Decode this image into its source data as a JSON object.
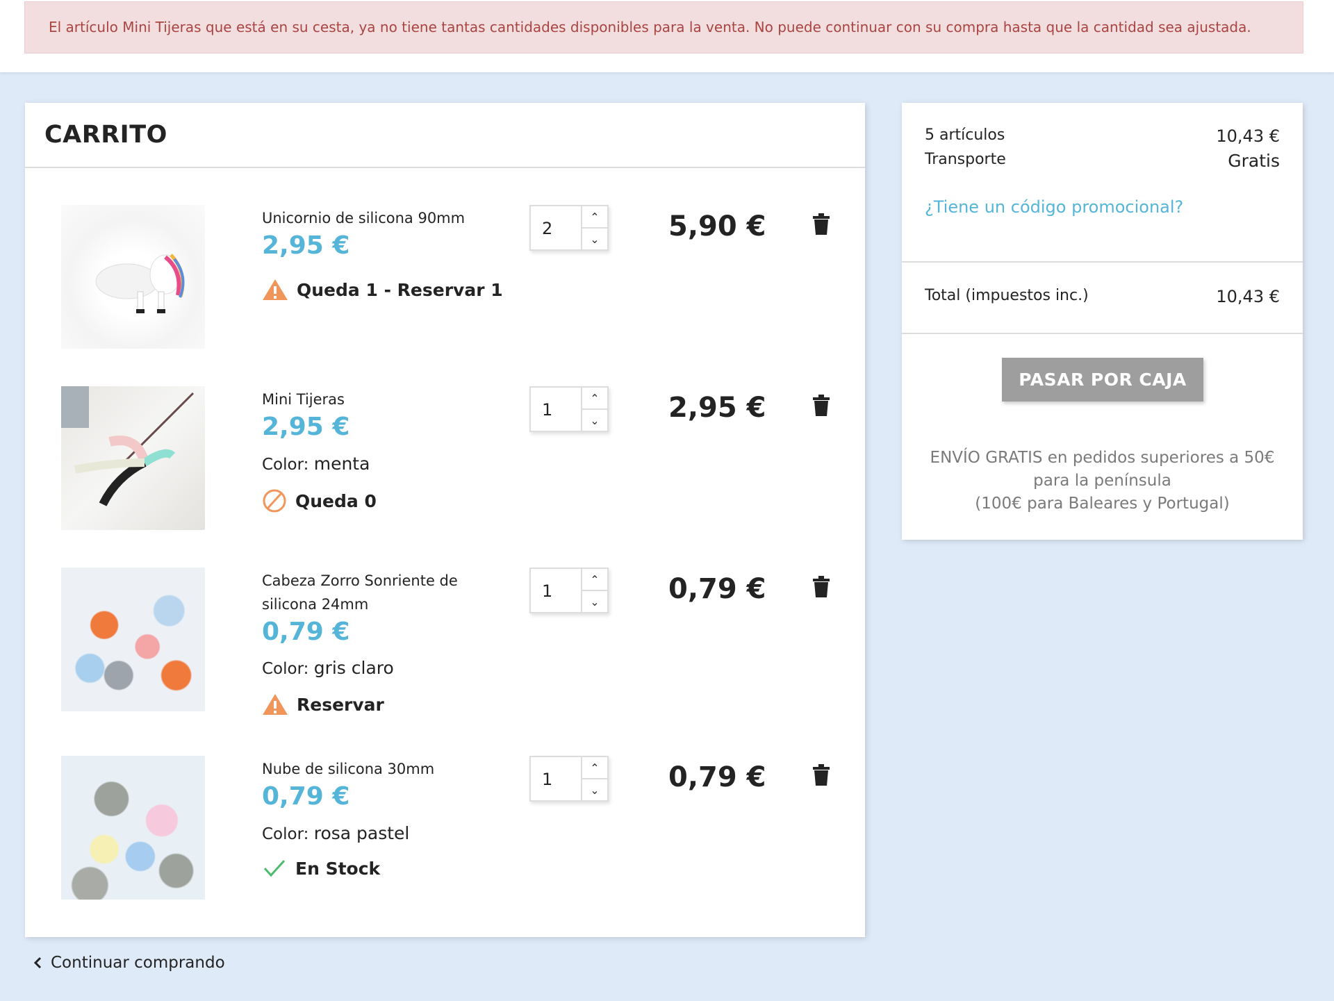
{
  "alert": {
    "message": "El artículo Mini Tijeras que está en su cesta, ya no tiene tantas cantidades disponibles para la venta. No puede continuar con su compra hasta que la cantidad sea ajustada."
  },
  "cart": {
    "title": "CARRITO",
    "items": [
      {
        "name": "Unicornio de silicona 90mm",
        "unit_price": "2,95 €",
        "color_label": "",
        "color": "",
        "stock": "Queda 1 - Reservar 1",
        "stock_icon": "warning-icon",
        "qty": "2",
        "total": "5,90 €"
      },
      {
        "name": "Mini Tijeras",
        "unit_price": "2,95 €",
        "color_label": "Color:",
        "color": "menta",
        "stock": "Queda 0",
        "stock_icon": "prohibited-icon",
        "qty": "1",
        "total": "2,95 €"
      },
      {
        "name": "Cabeza Zorro Sonriente de silicona 24mm",
        "unit_price": "0,79 €",
        "color_label": "Color:",
        "color": "gris claro",
        "stock": "Reservar",
        "stock_icon": "warning-icon",
        "qty": "1",
        "total": "0,79 €"
      },
      {
        "name": "Nube de silicona 30mm",
        "unit_price": "0,79 €",
        "color_label": "Color:",
        "color": "rosa pastel",
        "stock": "En Stock",
        "stock_icon": "check-icon",
        "qty": "1",
        "total": "0,79 €"
      }
    ],
    "continue": "Continuar comprando"
  },
  "summary": {
    "items_label": "5 artículos",
    "items_value": "10,43 €",
    "shipping_label": "Transporte",
    "shipping_value": "Gratis",
    "promo": "¿Tiene un código promocional?",
    "total_label": "Total (impuestos inc.)",
    "total_value": "10,43 €",
    "checkout": "PASAR POR CAJA",
    "ship_line1": "ENVÍO GRATIS en pedidos superiores a 50€",
    "ship_line2": "para la península",
    "ship_line3": "(100€ para Baleares y Portugal)"
  },
  "colors": {
    "accent": "#55b5d8",
    "warning": "#f0965a",
    "success": "#4cbb6c",
    "alert_bg": "#f2dede",
    "alert_text": "#a94442"
  }
}
